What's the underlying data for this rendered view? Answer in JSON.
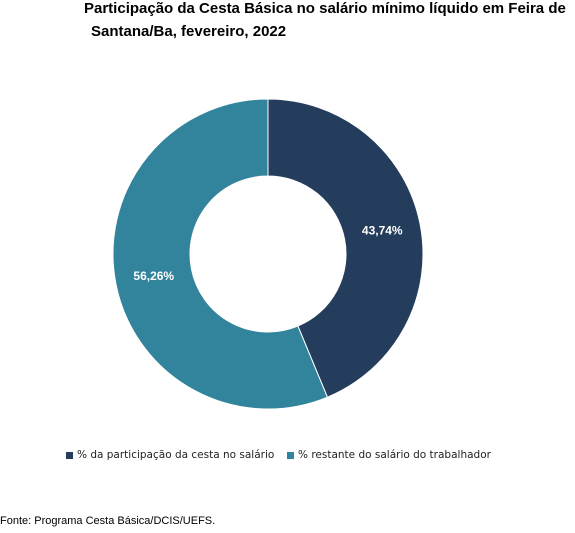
{
  "chart_data": {
    "type": "pie",
    "donut": true,
    "title": "Participação da Cesta Básica no salário mínimo líquido em Feira de Santana/Ba, fevereiro, 2022",
    "title_lines": [
      "Participação da Cesta Básica no salário mínimo líquido em Feira de",
      "Santana/Ba, fevereiro, 2022"
    ],
    "categories": [
      "% da participação da cesta no salário",
      "% restante do salário do trabalhador"
    ],
    "values": [
      43.74,
      56.26
    ],
    "value_labels": [
      "43,74%",
      "56,26%"
    ],
    "colors": [
      "#253d5c",
      "#31849b"
    ],
    "legend_position": "bottom"
  },
  "source": "Fonte: Programa Cesta Básica/DCIS/UEFS."
}
